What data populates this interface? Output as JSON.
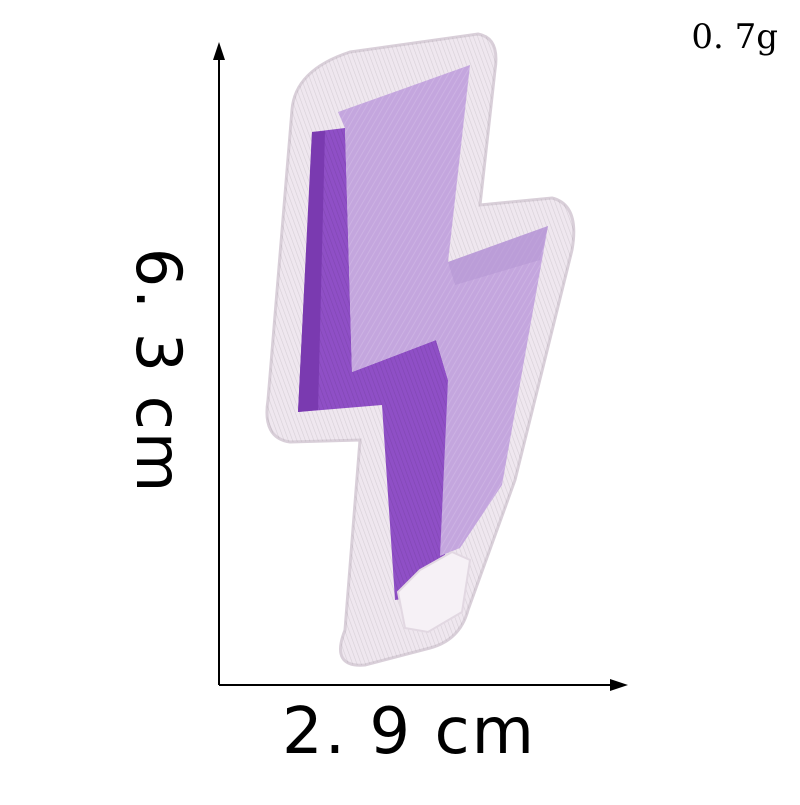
{
  "product": {
    "name": "Purple lightning bolt embroidered patch",
    "colors": {
      "border": "#efe7ef",
      "border_stitch": "#d9cfd9",
      "face": "#c4a6de",
      "face_dark": "#b697d3",
      "shadow": "#8f4fc6",
      "shadow_dark": "#7a3ab0"
    }
  },
  "dimensions": {
    "weight": "0. 7g",
    "width": "2. 9  cm",
    "height": "6. 3  cm"
  },
  "axes": {
    "color": "#000000"
  }
}
